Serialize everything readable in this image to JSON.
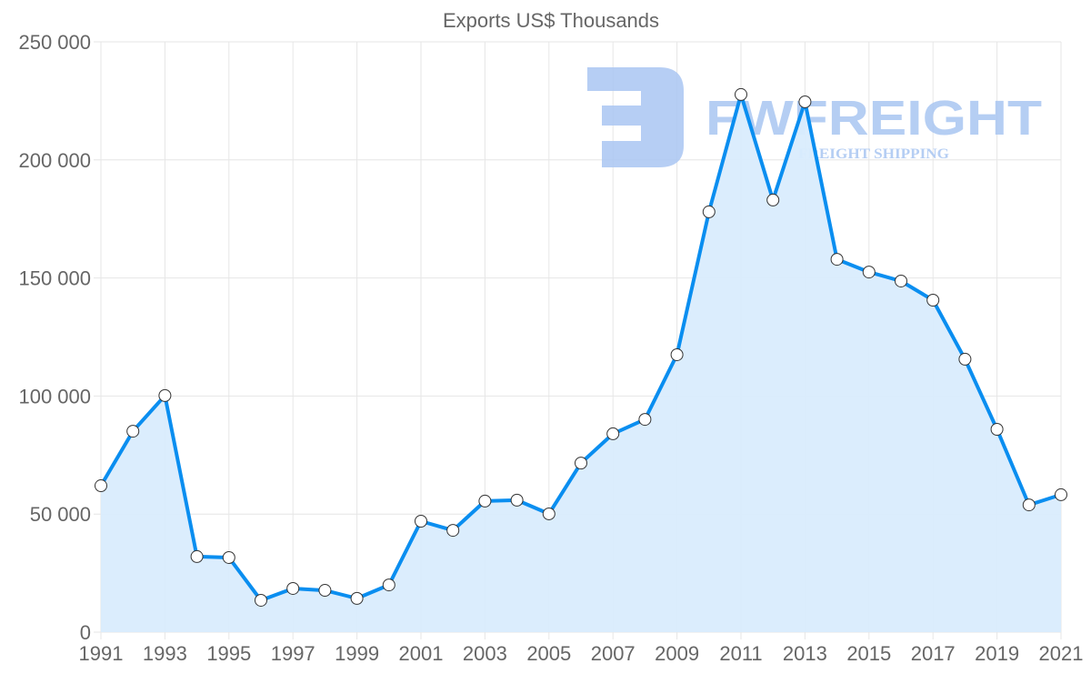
{
  "chart_data": {
    "type": "area",
    "title": "Exports US$ Thousands",
    "xlabel": "",
    "ylabel": "",
    "x": [
      1991,
      1992,
      1993,
      1994,
      1995,
      1996,
      1997,
      1998,
      1999,
      2000,
      2001,
      2002,
      2003,
      2004,
      2005,
      2006,
      2007,
      2008,
      2009,
      2010,
      2011,
      2012,
      2013,
      2014,
      2015,
      2016,
      2017,
      2018,
      2019,
      2020,
      2021
    ],
    "values": [
      62000,
      85100,
      100200,
      32000,
      31600,
      13500,
      18500,
      17700,
      14300,
      20000,
      47000,
      43100,
      55500,
      55900,
      50100,
      71600,
      84000,
      90100,
      117500,
      178000,
      227700,
      183000,
      224600,
      157900,
      152500,
      148700,
      140600,
      115600,
      85900,
      53900,
      58200
    ],
    "xticks": [
      "1991",
      "1993",
      "1995",
      "1997",
      "1999",
      "2001",
      "2003",
      "2005",
      "2007",
      "2009",
      "2011",
      "2013",
      "2015",
      "2017",
      "2019",
      "2021"
    ],
    "yticks": [
      "0",
      "50 000",
      "100 000",
      "150 000",
      "200 000",
      "250 000"
    ],
    "ylim": [
      0,
      250000
    ],
    "xlim": [
      1991,
      2021
    ],
    "grid": true,
    "legend": "none",
    "colors": {
      "line": "#0a8ef0",
      "fill": "#d9ecfd",
      "point_fill": "#ffffff",
      "point_stroke": "#333333",
      "watermark": "#a9c6f2"
    }
  },
  "watermark": {
    "brand": "FWFREIGHT",
    "tagline": "FREIGHT SHIPPING"
  }
}
